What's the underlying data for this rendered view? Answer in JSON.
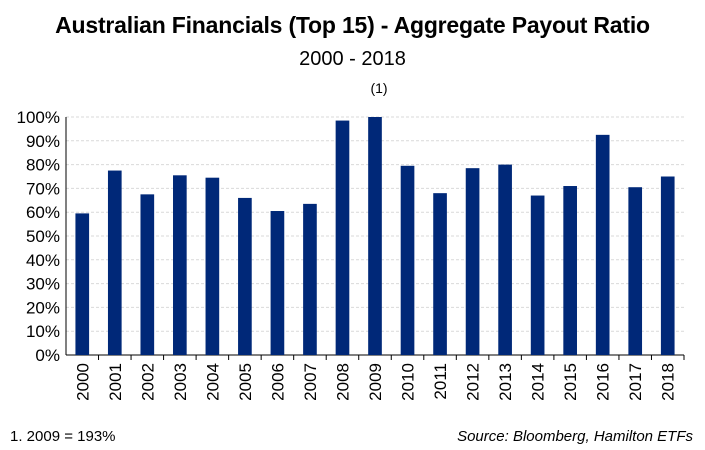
{
  "header": {
    "title": "Australian Financials (Top 15) - Aggregate Payout Ratio",
    "subtitle": "2000 - 2018",
    "footnote_marker": "(1)"
  },
  "footer": {
    "note": "1. 2009 = 193%",
    "source": "Source: Bloomberg, Hamilton ETFs"
  },
  "chart_data": {
    "type": "bar",
    "title": "Australian Financials (Top 15) - Aggregate Payout Ratio",
    "subtitle": "2000 - 2018",
    "xlabel": "",
    "ylabel": "",
    "categories": [
      "2000",
      "2001",
      "2002",
      "2003",
      "2004",
      "2005",
      "2006",
      "2007",
      "2008",
      "2009",
      "2010",
      "2011",
      "2012",
      "2013",
      "2014",
      "2015",
      "2016",
      "2017",
      "2018"
    ],
    "values": [
      59.5,
      77.5,
      67.5,
      75.5,
      74.5,
      66,
      60.5,
      63.5,
      98.5,
      100,
      79.5,
      68,
      78.5,
      80,
      67,
      71,
      92.5,
      70.5,
      75
    ],
    "ylim": [
      0,
      100
    ],
    "yticks": [
      "0%",
      "10%",
      "20%",
      "30%",
      "40%",
      "50%",
      "60%",
      "70%",
      "80%",
      "90%",
      "100%"
    ],
    "grid": true,
    "bar_color": "#002878",
    "grid_color": "#d9d9d9"
  }
}
